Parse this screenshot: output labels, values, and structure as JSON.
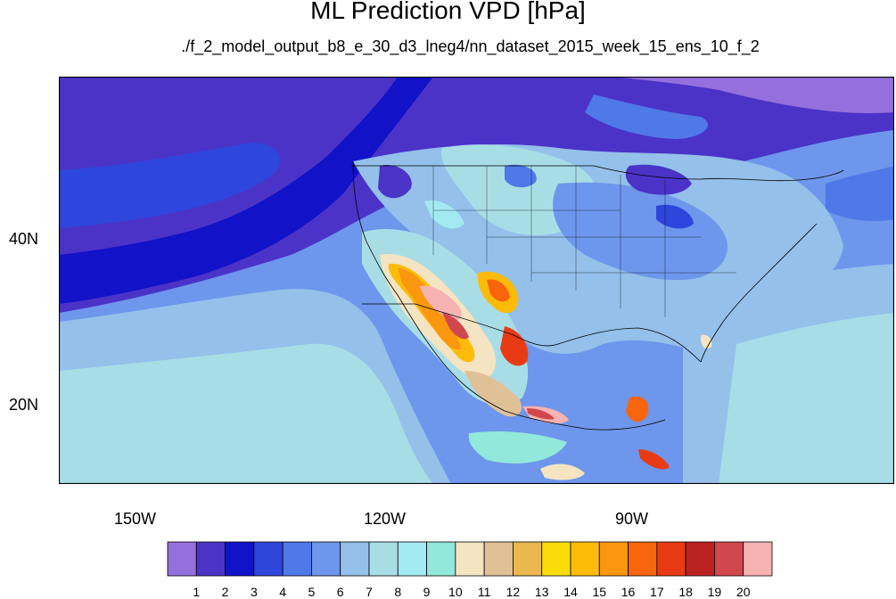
{
  "title": "ML Prediction VPD [hPa]",
  "subtitle": "./f_2_model_output_b8_e_30_d3_lneg4/nn_dataset_2015_week_15_ens_10_f_2",
  "axes": {
    "lat_labels": [
      "40N",
      "20N"
    ],
    "lon_labels": [
      "150W",
      "120W",
      "90W"
    ]
  },
  "colorbar": {
    "labels": [
      "1",
      "2",
      "3",
      "4",
      "5",
      "6",
      "7",
      "8",
      "9",
      "10",
      "11",
      "12",
      "13",
      "14",
      "15",
      "16",
      "17",
      "18",
      "19",
      "20"
    ],
    "colors": [
      "#9370db",
      "#4b33c8",
      "#1212c8",
      "#2f46dc",
      "#4f78e8",
      "#6e96ec",
      "#94c0ea",
      "#a9dde6",
      "#a3e9f1",
      "#92e8da",
      "#f4e4c2",
      "#e0c197",
      "#e9b94f",
      "#f9dc0a",
      "#fcbb08",
      "#fb970e",
      "#f9650c",
      "#e83b14",
      "#bd2222",
      "#d0484e",
      "#f7b2b2"
    ]
  },
  "map_legend_note": "VPD [hPa]"
}
